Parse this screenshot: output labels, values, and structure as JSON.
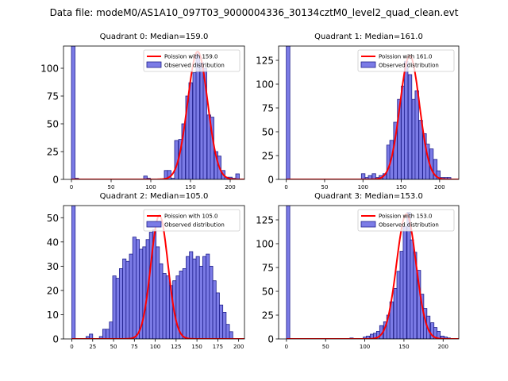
{
  "suptitle": "Data file: modeM0/AS1A10_097T03_9000004336_30134cztM0_level2_quad_clean.evt",
  "colors": {
    "bar_fill": "#7b7be6",
    "bar_edge": "#1f1f8c",
    "curve": "#ff0000"
  },
  "chart_data": [
    {
      "type": "bar",
      "title": "Quadrant 0: Median=159.0",
      "legend": {
        "position": "top-right",
        "curve_label": "Poission with 159.0",
        "hist_label": "Observed distribution"
      },
      "xlim": [
        -10,
        218
      ],
      "ylim": [
        0,
        120
      ],
      "xticks": [
        0,
        50,
        100,
        150,
        200
      ],
      "yticks": [
        0,
        25,
        50,
        75,
        100
      ],
      "mean": 159.0,
      "curve_peak": 115,
      "curve_sigma": 12.6,
      "bin_width": 4.5,
      "bins": [
        [
          0,
          120
        ],
        [
          4.5,
          1
        ],
        [
          91,
          3
        ],
        [
          95,
          1
        ],
        [
          117,
          8
        ],
        [
          121,
          8
        ],
        [
          126,
          1
        ],
        [
          130,
          35
        ],
        [
          135,
          36
        ],
        [
          139,
          50
        ],
        [
          144,
          75
        ],
        [
          148,
          87
        ],
        [
          153,
          96
        ],
        [
          157,
          113
        ],
        [
          162,
          105
        ],
        [
          166,
          100
        ],
        [
          171,
          58
        ],
        [
          175,
          56
        ],
        [
          180,
          25
        ],
        [
          184,
          21
        ],
        [
          189,
          8
        ],
        [
          193,
          2
        ],
        [
          198,
          2
        ],
        [
          202,
          1
        ],
        [
          207,
          5
        ]
      ]
    },
    {
      "type": "bar",
      "title": "Quadrant 1: Median=161.0",
      "legend": {
        "position": "top-right",
        "curve_label": "Poission with 161.0",
        "hist_label": "Observed distribution"
      },
      "xlim": [
        -10,
        225
      ],
      "ylim": [
        0,
        140
      ],
      "xticks": [
        0,
        50,
        100,
        150,
        200
      ],
      "yticks": [
        0,
        25,
        50,
        75,
        100,
        125
      ],
      "mean": 161.0,
      "curve_peak": 130,
      "curve_sigma": 12.7,
      "bin_width": 4.7,
      "bins": [
        [
          0,
          140
        ],
        [
          98,
          6
        ],
        [
          103,
          2
        ],
        [
          107,
          4
        ],
        [
          112,
          6
        ],
        [
          117,
          2
        ],
        [
          121,
          4
        ],
        [
          126,
          6
        ],
        [
          131,
          36
        ],
        [
          135,
          41
        ],
        [
          140,
          60
        ],
        [
          145,
          84
        ],
        [
          150,
          98
        ],
        [
          154,
          124
        ],
        [
          159,
          110
        ],
        [
          164,
          84
        ],
        [
          168,
          93
        ],
        [
          173,
          62
        ],
        [
          178,
          48
        ],
        [
          182,
          37
        ],
        [
          187,
          32
        ],
        [
          192,
          21
        ],
        [
          196,
          9
        ],
        [
          201,
          2
        ],
        [
          206,
          2
        ],
        [
          210,
          2
        ]
      ]
    },
    {
      "type": "bar",
      "title": "Quadrant 2: Median=105.0",
      "legend": {
        "position": "top-right",
        "curve_label": "Poission with 105.0",
        "hist_label": "Observed distribution"
      },
      "xlim": [
        -10,
        207
      ],
      "ylim": [
        0,
        55
      ],
      "xticks": [
        0,
        25,
        50,
        75,
        100,
        125,
        150,
        175,
        200
      ],
      "yticks": [
        0,
        10,
        20,
        30,
        40,
        50
      ],
      "mean": 105.0,
      "curve_peak": 51,
      "curve_sigma": 10.25,
      "bin_width": 4.0,
      "bins": [
        [
          0,
          55
        ],
        [
          17,
          1
        ],
        [
          21,
          2
        ],
        [
          33,
          1
        ],
        [
          37,
          4
        ],
        [
          41,
          4
        ],
        [
          45,
          7
        ],
        [
          49,
          26
        ],
        [
          53,
          25
        ],
        [
          57,
          29
        ],
        [
          61,
          33
        ],
        [
          65,
          32
        ],
        [
          69,
          35
        ],
        [
          73,
          42
        ],
        [
          77,
          41
        ],
        [
          81,
          37
        ],
        [
          85,
          38
        ],
        [
          89,
          41
        ],
        [
          93,
          44
        ],
        [
          97,
          45
        ],
        [
          101,
          38
        ],
        [
          105,
          31
        ],
        [
          109,
          27
        ],
        [
          113,
          26
        ],
        [
          117,
          22
        ],
        [
          121,
          24
        ],
        [
          125,
          26
        ],
        [
          129,
          28
        ],
        [
          133,
          29
        ],
        [
          137,
          34
        ],
        [
          141,
          36
        ],
        [
          145,
          33
        ],
        [
          149,
          34
        ],
        [
          153,
          30
        ],
        [
          157,
          34
        ],
        [
          161,
          35
        ],
        [
          165,
          30
        ],
        [
          169,
          24
        ],
        [
          173,
          19
        ],
        [
          177,
          14
        ],
        [
          181,
          11
        ],
        [
          185,
          6
        ],
        [
          189,
          3
        ]
      ]
    },
    {
      "type": "bar",
      "title": "Quadrant 3: Median=153.0",
      "legend": {
        "position": "top-right",
        "curve_label": "Poission with 153.0",
        "hist_label": "Observed distribution"
      },
      "xlim": [
        -10,
        220
      ],
      "ylim": [
        0,
        140
      ],
      "xticks": [
        0,
        50,
        100,
        150,
        200
      ],
      "yticks": [
        0,
        25,
        50,
        75,
        100,
        125
      ],
      "mean": 153.0,
      "curve_peak": 131,
      "curve_sigma": 12.4,
      "bin_width": 4.3,
      "bins": [
        [
          0,
          140
        ],
        [
          81,
          1
        ],
        [
          98,
          2
        ],
        [
          102,
          3
        ],
        [
          107,
          5
        ],
        [
          111,
          6
        ],
        [
          115,
          8
        ],
        [
          119,
          14
        ],
        [
          124,
          18
        ],
        [
          128,
          25
        ],
        [
          132,
          39
        ],
        [
          137,
          53
        ],
        [
          141,
          71
        ],
        [
          145,
          92
        ],
        [
          149,
          118
        ],
        [
          154,
          133
        ],
        [
          158,
          104
        ],
        [
          162,
          91
        ],
        [
          167,
          72
        ],
        [
          171,
          47
        ],
        [
          175,
          32
        ],
        [
          179,
          24
        ],
        [
          184,
          17
        ],
        [
          188,
          12
        ],
        [
          192,
          8
        ],
        [
          197,
          3
        ],
        [
          201,
          2
        ],
        [
          205,
          1
        ]
      ]
    }
  ]
}
